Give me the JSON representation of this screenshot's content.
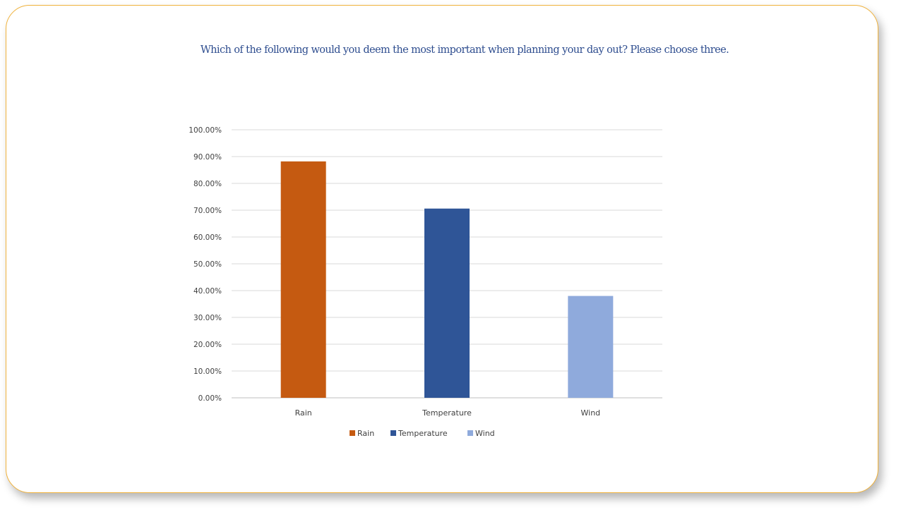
{
  "colors": {
    "border": "#f0b23c",
    "title": "#2e4d8f",
    "grid": "#d9d9d9",
    "text": "#404040"
  },
  "chart_data": {
    "type": "bar",
    "title": "Which of the following would you deem the most important when planning your day out? Please choose three.",
    "xlabel": "",
    "ylabel": "",
    "ylim": [
      0,
      100
    ],
    "y_tick_step": 10,
    "y_tick_labels": [
      "0.00%",
      "10.00%",
      "20.00%",
      "30.00%",
      "40.00%",
      "50.00%",
      "60.00%",
      "70.00%",
      "80.00%",
      "90.00%",
      "100.00%"
    ],
    "categories": [
      "Rain",
      "Temperature",
      "Wind"
    ],
    "values": [
      88.2,
      70.6,
      38.0
    ],
    "bar_colors": [
      "#c55a11",
      "#2f5597",
      "#8faadc"
    ],
    "grid": true,
    "legend": {
      "position": "bottom",
      "entries": [
        "Rain",
        "Temperature",
        "Wind"
      ]
    }
  }
}
